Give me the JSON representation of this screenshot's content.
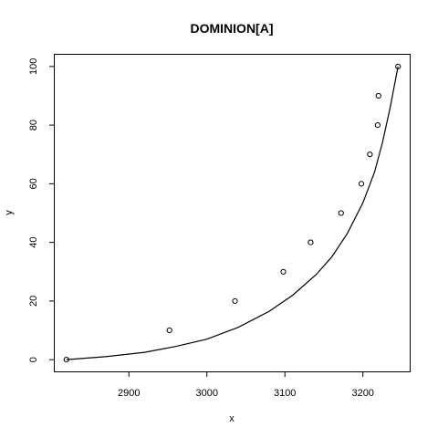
{
  "chart_data": {
    "type": "scatter",
    "title": "DOMINION[A]",
    "xlabel": "x",
    "ylabel": "y",
    "xlim": [
      2805,
      3260
    ],
    "ylim": [
      -4,
      104
    ],
    "x_ticks": [
      2900,
      3000,
      3100,
      3200
    ],
    "y_ticks": [
      0,
      20,
      40,
      60,
      80,
      100
    ],
    "grid": false,
    "legend": "none",
    "series": [
      {
        "points": [
          {
            "x": 2820,
            "y": 0
          },
          {
            "x": 2952,
            "y": 10
          },
          {
            "x": 3036,
            "y": 20
          },
          {
            "x": 3098,
            "y": 30
          },
          {
            "x": 3133,
            "y": 40
          },
          {
            "x": 3172,
            "y": 50
          },
          {
            "x": 3198,
            "y": 60
          },
          {
            "x": 3209,
            "y": 70
          },
          {
            "x": 3219,
            "y": 80
          },
          {
            "x": 3220,
            "y": 90
          },
          {
            "x": 3245,
            "y": 100
          }
        ]
      },
      {
        "type": "line",
        "points": [
          {
            "x": 2820,
            "y": 0
          },
          {
            "x": 2870,
            "y": 1
          },
          {
            "x": 2920,
            "y": 2.5
          },
          {
            "x": 2960,
            "y": 4.5
          },
          {
            "x": 3000,
            "y": 7
          },
          {
            "x": 3040,
            "y": 11
          },
          {
            "x": 3080,
            "y": 16.5
          },
          {
            "x": 3110,
            "y": 22
          },
          {
            "x": 3140,
            "y": 29
          },
          {
            "x": 3160,
            "y": 35
          },
          {
            "x": 3180,
            "y": 43
          },
          {
            "x": 3200,
            "y": 53.5
          },
          {
            "x": 3215,
            "y": 64
          },
          {
            "x": 3225,
            "y": 74
          },
          {
            "x": 3235,
            "y": 86
          },
          {
            "x": 3245,
            "y": 100
          }
        ]
      }
    ]
  }
}
